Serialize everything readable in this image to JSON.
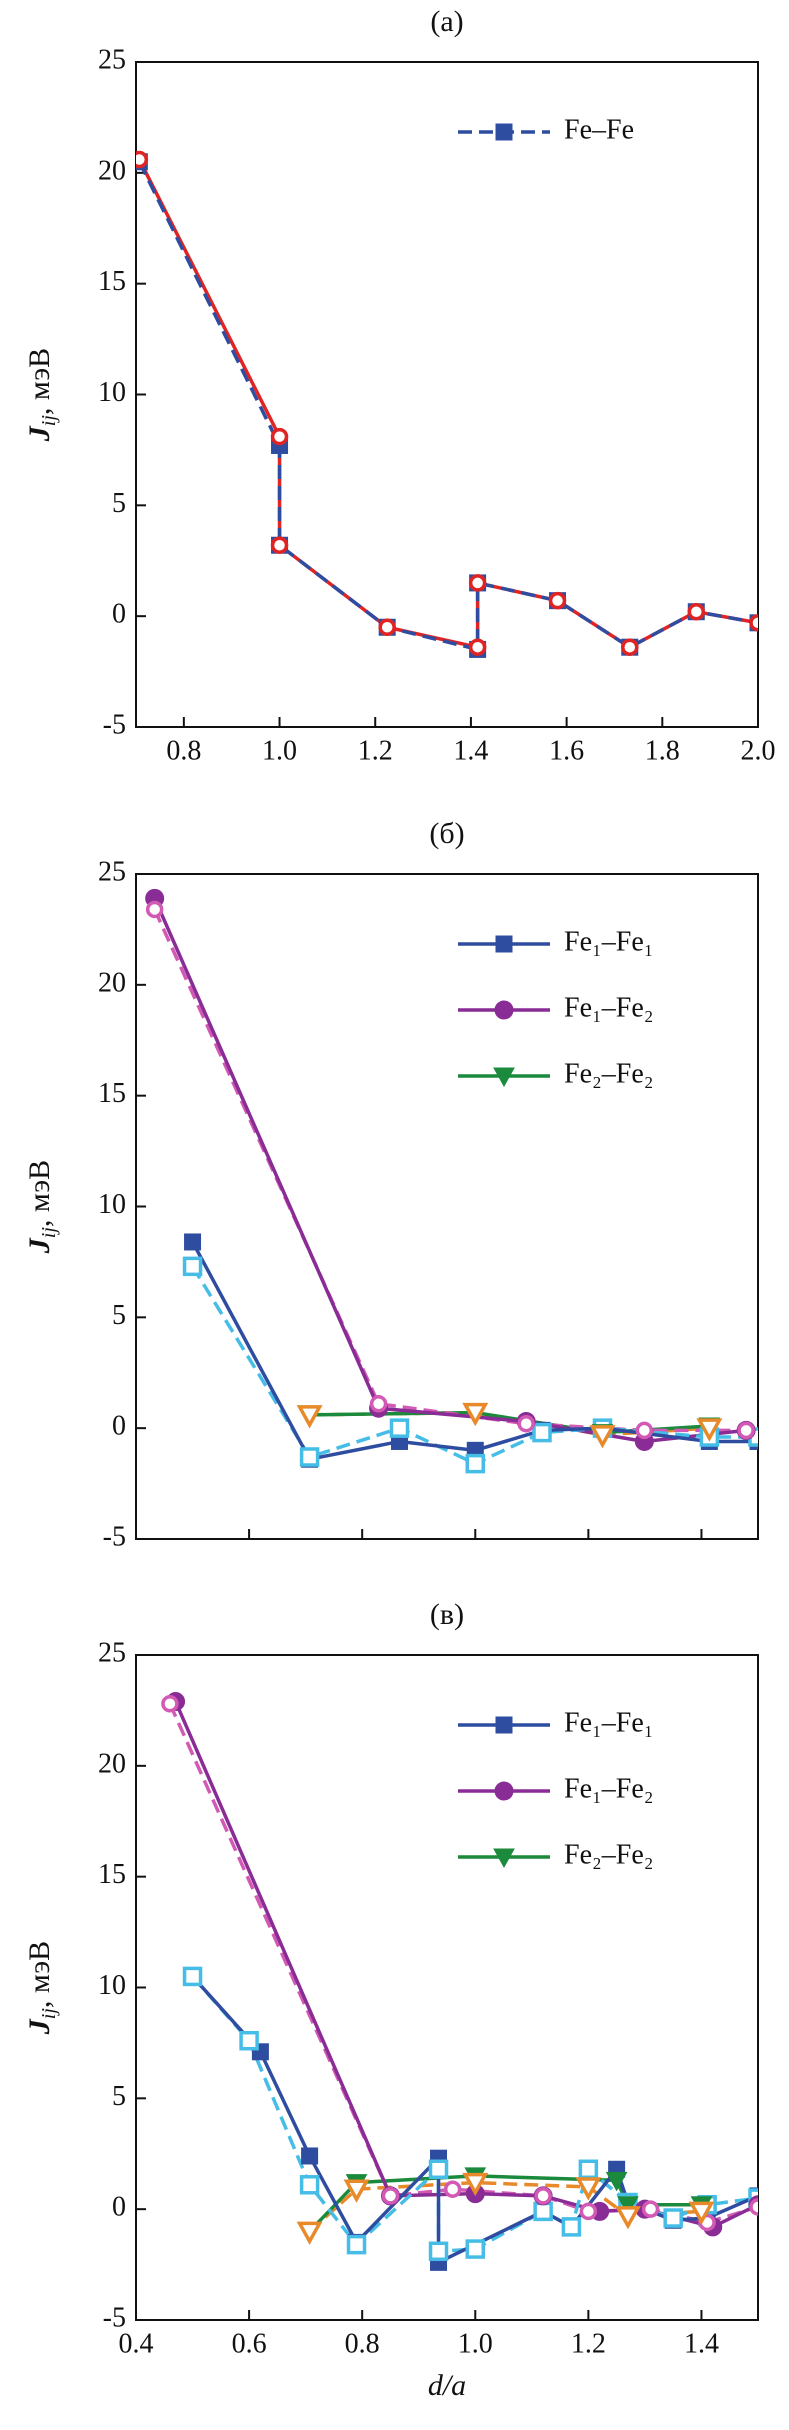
{
  "chart_data": [
    {
      "type": "line",
      "title": "(a)",
      "xlim": [
        0.7,
        2.0
      ],
      "ylim": [
        -5,
        25
      ],
      "xticks": [
        0.8,
        {
          "value": 1,
          "label": "1.0"
        },
        1.2,
        1.4,
        1.6,
        1.8,
        {
          "value": 2,
          "label": "2.0"
        }
      ],
      "yticks": [
        -5,
        0,
        5,
        10,
        15,
        20,
        25
      ],
      "xtick_labels": true,
      "legend": "upper right",
      "ylabel": {
        "text": "J",
        "sub": "ij",
        "unit": ", мэВ"
      },
      "series": [
        {
          "name": "Fe–Fe",
          "color": "#2f4da0",
          "marker": "square",
          "filled": true,
          "dashed": true,
          "x": [
            0.707,
            1.0,
            1.0,
            1.225,
            1.414,
            1.414,
            1.581,
            1.732,
            1.871,
            2.0
          ],
          "values": [
            20.5,
            7.7,
            3.2,
            -0.5,
            -1.5,
            1.5,
            0.7,
            -1.4,
            0.2,
            -0.3
          ]
        },
        {
          "color": "#e02424",
          "marker": "circle",
          "filled": false,
          "dashed": false,
          "x": [
            0.707,
            1.0,
            1.0,
            1.225,
            1.414,
            1.414,
            1.581,
            1.732,
            1.871,
            2.0
          ],
          "values": [
            20.6,
            8.1,
            3.2,
            -0.5,
            -1.4,
            1.5,
            0.7,
            -1.4,
            0.2,
            -0.3
          ]
        }
      ]
    },
    {
      "type": "line",
      "title": "(б)",
      "xlim": [
        0.4,
        1.5
      ],
      "ylim": [
        -5,
        25
      ],
      "xticks": [
        0.4,
        0.6,
        0.8,
        1,
        1.2,
        1.4
      ],
      "yticks": [
        -5,
        0,
        5,
        10,
        15,
        20,
        25
      ],
      "xtick_labels": false,
      "legend": "upper right",
      "ylabel": {
        "text": "J",
        "sub": "ij",
        "unit": ", мэВ"
      },
      "series": [
        {
          "name": "Fe₁–Fe₁",
          "color": "#2f4da0",
          "marker": "square",
          "filled": true,
          "dashed": false,
          "x": [
            0.5,
            0.707,
            0.866,
            1.0,
            1.118,
            1.225,
            1.414,
            1.5
          ],
          "values": [
            8.4,
            -1.4,
            -0.6,
            -1.0,
            -0.1,
            0.0,
            -0.6,
            -0.6
          ]
        },
        {
          "color": "#45bde6",
          "marker": "square",
          "filled": false,
          "dashed": true,
          "x": [
            0.5,
            0.707,
            0.866,
            1.0,
            1.118,
            1.225,
            1.414,
            1.5
          ],
          "values": [
            7.3,
            -1.3,
            0.0,
            -1.6,
            -0.2,
            0.0,
            -0.4,
            -0.4
          ]
        },
        {
          "name": "Fe₁–Fe₂",
          "color": "#8a2c95",
          "marker": "circle",
          "filled": true,
          "dashed": false,
          "x": [
            0.433,
            0.829,
            1.09,
            1.299,
            1.479
          ],
          "values": [
            23.9,
            0.9,
            0.3,
            -0.6,
            -0.1
          ]
        },
        {
          "color": "#d35ab4",
          "marker": "circle",
          "filled": false,
          "dashed": true,
          "x": [
            0.433,
            0.829,
            1.09,
            1.299,
            1.479
          ],
          "values": [
            23.4,
            1.1,
            0.2,
            -0.1,
            -0.1
          ]
        },
        {
          "name": "Fe₂–Fe₂",
          "color": "#1b8a3c",
          "marker": "triangle",
          "filled": true,
          "dashed": false,
          "x": [
            0.707,
            1.0,
            1.225,
            1.414
          ],
          "values": [
            0.6,
            0.7,
            -0.2,
            0.1
          ]
        },
        {
          "color": "#e8892a",
          "marker": "triangle",
          "filled": false,
          "dashed": true,
          "x": [
            0.707,
            1.0,
            1.225,
            1.414
          ],
          "values": [
            0.6,
            0.7,
            -0.3,
            0.0
          ]
        }
      ]
    },
    {
      "type": "line",
      "title": "(в)",
      "xlim": [
        0.4,
        1.5
      ],
      "ylim": [
        -5,
        25
      ],
      "xticks": [
        0.4,
        0.6,
        0.8,
        {
          "value": 1,
          "label": "1.0"
        },
        1.2,
        1.4
      ],
      "yticks": [
        -5,
        0,
        5,
        10,
        15,
        20,
        25
      ],
      "xtick_labels": true,
      "legend": "upper right",
      "ylabel": {
        "text": "J",
        "sub": "ij",
        "unit": ", мэВ"
      },
      "xlabel": "d/a",
      "series": [
        {
          "name": "Fe₁–Fe₁",
          "color": "#2f4da0",
          "marker": "square",
          "filled": true,
          "dashed": false,
          "x": [
            0.5,
            0.62,
            0.707,
            0.79,
            0.935,
            0.935,
            1.12,
            1.17,
            1.25,
            1.27,
            1.35,
            1.41,
            1.5
          ],
          "values": [
            10.5,
            7.1,
            2.4,
            -1.5,
            2.3,
            -2.4,
            -0.1,
            -0.8,
            1.8,
            0.3,
            -0.5,
            -0.4,
            0.6
          ]
        },
        {
          "color": "#45bde6",
          "marker": "square",
          "filled": false,
          "dashed": true,
          "x": [
            0.5,
            0.6,
            0.707,
            0.79,
            0.935,
            0.935,
            1.0,
            1.12,
            1.17,
            1.2,
            1.27,
            1.35,
            1.41,
            1.5
          ],
          "values": [
            10.5,
            7.6,
            1.1,
            -1.6,
            1.8,
            -1.9,
            -1.8,
            -0.1,
            -0.8,
            1.8,
            0.3,
            -0.4,
            0.2,
            0.5
          ]
        },
        {
          "name": "Fe₁–Fe₂",
          "color": "#8a2c95",
          "marker": "circle",
          "filled": true,
          "dashed": false,
          "x": [
            0.47,
            0.85,
            1.0,
            1.12,
            1.22,
            1.3,
            1.42,
            1.5
          ],
          "values": [
            22.9,
            0.6,
            0.7,
            0.6,
            -0.1,
            0.0,
            -0.8,
            0.2
          ]
        },
        {
          "color": "#d35ab4",
          "marker": "circle",
          "filled": false,
          "dashed": true,
          "x": [
            0.46,
            0.85,
            0.96,
            1.12,
            1.2,
            1.31,
            1.41,
            1.5
          ],
          "values": [
            22.8,
            0.6,
            0.9,
            0.6,
            -0.1,
            0.0,
            -0.6,
            0.1
          ]
        },
        {
          "name": "Fe₂–Fe₂",
          "color": "#1b8a3c",
          "marker": "triangle",
          "filled": true,
          "dashed": false,
          "x": [
            0.707,
            0.79,
            1.0,
            1.25,
            1.27,
            1.4
          ],
          "values": [
            -1.0,
            1.2,
            1.5,
            1.3,
            0.2,
            0.2
          ]
        },
        {
          "color": "#e8892a",
          "marker": "triangle",
          "filled": false,
          "dashed": true,
          "x": [
            0.707,
            0.79,
            1.0,
            1.2,
            1.27,
            1.4
          ],
          "values": [
            -1.0,
            0.9,
            1.2,
            1.0,
            -0.3,
            -0.1
          ]
        }
      ]
    }
  ]
}
